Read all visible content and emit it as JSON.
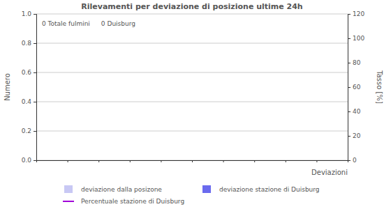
{
  "chart_data": {
    "type": "bar",
    "title": "Rilevamenti per deviazione di posizione ultime 24h",
    "annotations": [
      "0 Totale fulmini",
      "0 Duisburg"
    ],
    "x_label": "Deviazioni",
    "y_label": "Numero",
    "y2_label": "Tasso [%]",
    "xlim": [
      0,
      10
    ],
    "xticks": [
      1,
      2,
      3,
      4,
      5,
      6,
      7,
      8,
      9
    ],
    "tick_labels": "y",
    "ylim": [
      0,
      1
    ],
    "yticks": [
      {
        "value": 0,
        "label": "0.0"
      },
      {
        "value": 0.2,
        "label": "0.2"
      },
      {
        "value": 0.4,
        "label": "0.4"
      },
      {
        "value": 0.6,
        "label": "0.6"
      },
      {
        "value": 0.8,
        "label": "0.8"
      },
      {
        "value": 1,
        "label": "1.0"
      }
    ],
    "y2lim": [
      0,
      120
    ],
    "y2ticks": [
      0,
      20,
      40,
      60,
      80,
      100,
      120
    ],
    "grid": true,
    "series": [
      {
        "name": "deviazione dalla posizone",
        "type": "bar",
        "color": "#c8c8f4",
        "values": []
      },
      {
        "name": "deviazione stazione di Duisburg",
        "type": "bar",
        "color": "#6a6aee",
        "values": []
      },
      {
        "name": "Percentuale stazione di Duisburg",
        "type": "line",
        "axis": "y2",
        "color": "#a000d8",
        "values": []
      }
    ]
  }
}
